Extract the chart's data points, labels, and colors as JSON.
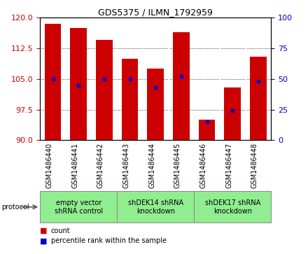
{
  "title": "GDS5375 / ILMN_1792959",
  "samples": [
    "GSM1486440",
    "GSM1486441",
    "GSM1486442",
    "GSM1486443",
    "GSM1486444",
    "GSM1486445",
    "GSM1486446",
    "GSM1486447",
    "GSM1486448"
  ],
  "counts": [
    118.5,
    117.5,
    114.5,
    110.0,
    107.5,
    116.5,
    95.0,
    103.0,
    110.5
  ],
  "percentile_ranks": [
    50,
    45,
    50,
    50,
    43,
    52,
    15,
    24,
    48
  ],
  "ylim_left": [
    90,
    120
  ],
  "ylim_right": [
    0,
    100
  ],
  "yticks_left": [
    90,
    97.5,
    105,
    112.5,
    120
  ],
  "yticks_right": [
    0,
    25,
    50,
    75,
    100
  ],
  "bar_color": "#cc0000",
  "percentile_color": "#0000cc",
  "bg_plot": "#ffffff",
  "bg_xlabels": "#d3d3d3",
  "bg_groups": "#90ee90",
  "groups": [
    {
      "label": "empty vector\nshRNA control",
      "start": 0,
      "end": 3
    },
    {
      "label": "shDEK14 shRNA\nknockdown",
      "start": 3,
      "end": 6
    },
    {
      "label": "shDEK17 shRNA\nknockdown",
      "start": 6,
      "end": 9
    }
  ],
  "protocol_label": "protocol",
  "legend_count_label": "count",
  "legend_percentile_label": "percentile rank within the sample",
  "title_fontsize": 9,
  "tick_fontsize": 8,
  "label_fontsize": 7,
  "legend_fontsize": 7
}
